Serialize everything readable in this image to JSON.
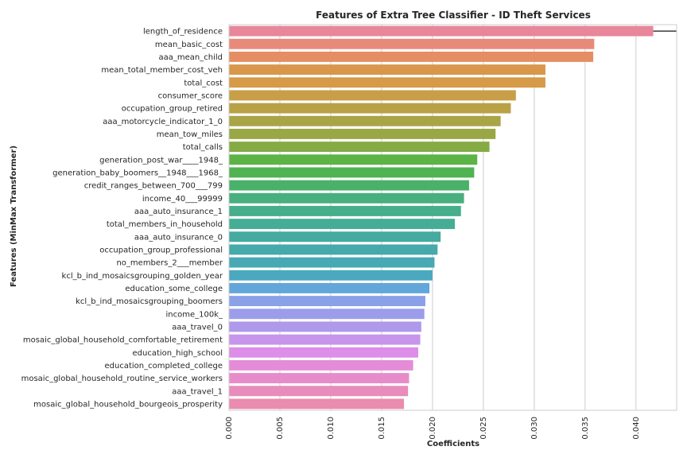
{
  "chart_data": {
    "type": "bar",
    "orientation": "horizontal",
    "title": "Features of Extra Tree Classifier - ID Theft Services",
    "xlabel": "Coefficients",
    "ylabel": "Features (MinMax Transformer)",
    "xlim": [
      0,
      0.044
    ],
    "xticks": [
      "0.000",
      "0.005",
      "0.010",
      "0.015",
      "0.020",
      "0.025",
      "0.030",
      "0.035",
      "0.040"
    ],
    "grid": "vertical",
    "categories": [
      "length_of_residence",
      "mean_basic_cost",
      "aaa_mean_child",
      "mean_total_member_cost_veh",
      "total_cost",
      "consumer_score",
      "occupation_group_retired",
      "aaa_motorcycle_indicator_1_0",
      "mean_tow_miles",
      "total_calls",
      "generation_post_war____1948_",
      "generation_baby_boomers__1948___1968_",
      "credit_ranges_between_700___799",
      "income_40___99999",
      "aaa_auto_insurance_1",
      "total_members_in_household",
      "aaa_auto_insurance_0",
      "occupation_group_professional",
      "no_members_2___member",
      "kcl_b_ind_mosaicsgrouping_golden_year",
      "education_some_college",
      "kcl_b_ind_mosaicsgrouping_boomers",
      "income_100k_",
      "aaa_travel_0",
      "mosaic_global_household_comfortable_retirement",
      "education_high_school",
      "education_completed_college",
      "mosaic_global_household_routine_service_workers",
      "aaa_travel_1",
      "mosaic_global_household_bourgeois_prosperity"
    ],
    "values": [
      0.0417,
      0.0359,
      0.0358,
      0.0311,
      0.0311,
      0.0282,
      0.0277,
      0.0267,
      0.0262,
      0.0256,
      0.0244,
      0.0241,
      0.0236,
      0.0231,
      0.0228,
      0.0222,
      0.0208,
      0.0205,
      0.0202,
      0.02,
      0.0197,
      0.0193,
      0.0192,
      0.0189,
      0.0188,
      0.0186,
      0.0181,
      0.0177,
      0.0176,
      0.0172
    ],
    "colors": [
      "#e8869a",
      "#e88a7a",
      "#e58e64",
      "#d8974a",
      "#d69a48",
      "#c89f47",
      "#b9a146",
      "#a9a446",
      "#99a745",
      "#85ab45",
      "#5cb346",
      "#4fb352",
      "#4ab16b",
      "#48af7e",
      "#46ae8a",
      "#45ad95",
      "#45aaa0",
      "#46a9aa",
      "#48a8b4",
      "#4aa8c0",
      "#62a6da",
      "#8aa1e8",
      "#9b9dea",
      "#ae99eb",
      "#c795eb",
      "#dd8ee8",
      "#e48cd8",
      "#e78cc9",
      "#e88cbc",
      "#e98caf"
    ]
  }
}
